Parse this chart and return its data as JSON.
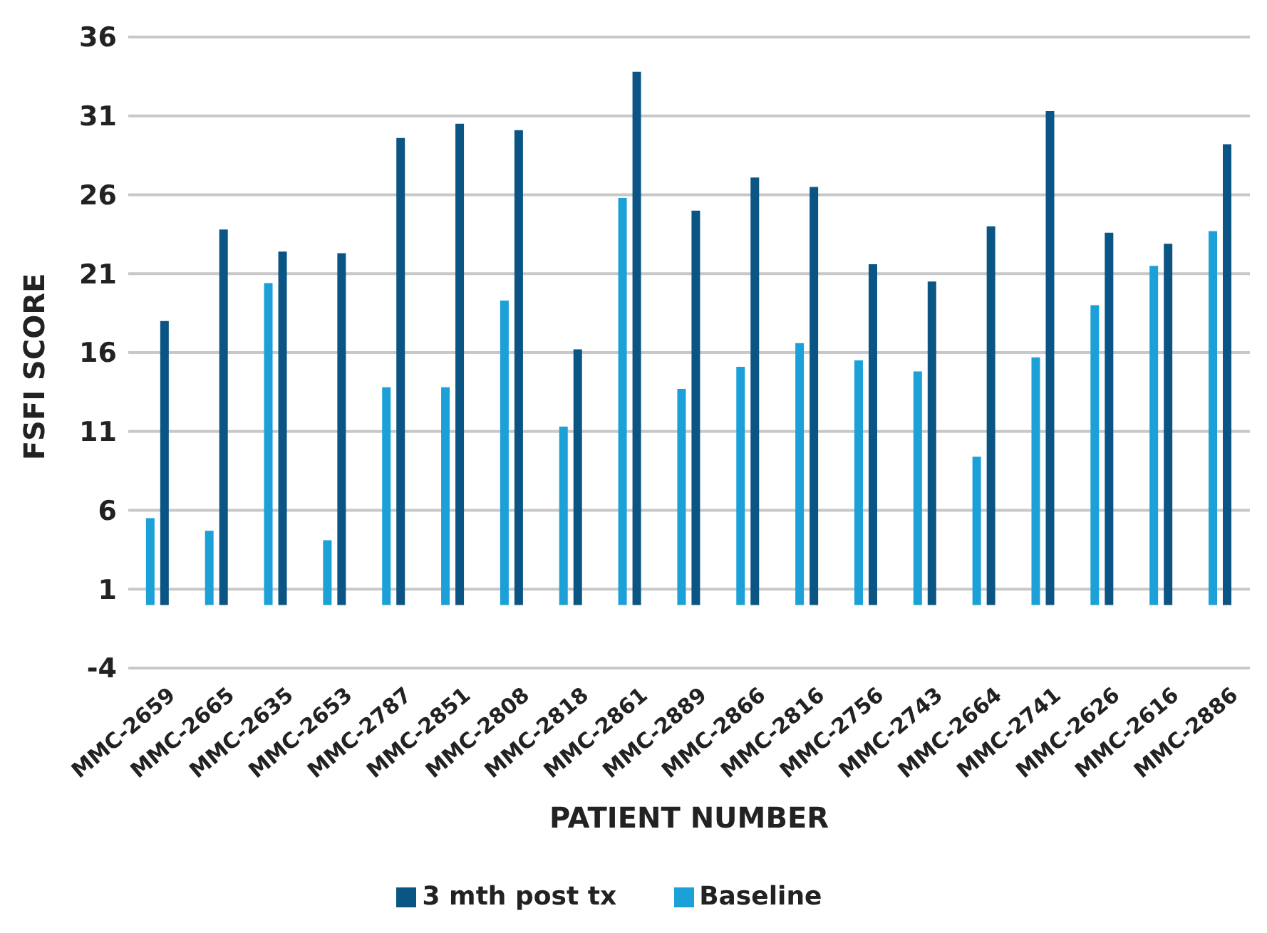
{
  "chart_data": {
    "type": "bar",
    "xlabel": "PATIENT NUMBER",
    "ylabel": "FSFI SCORE",
    "categories": [
      "MMC-2659",
      "MMC-2665",
      "MMC-2635",
      "MMC-2653",
      "MMC-2787",
      "MMC-2851",
      "MMC-2808",
      "MMC-2818",
      "MMC-2861",
      "MMC-2889",
      "MMC-2866",
      "MMC-2816",
      "MMC-2756",
      "MMC-2743",
      "MMC-2664",
      "MMC-2741",
      "MMC-2626",
      "MMC-2616",
      "MMC-2886"
    ],
    "series": [
      {
        "name": "Baseline",
        "color": "#1ba1d8",
        "values": [
          5.5,
          4.7,
          20.4,
          4.1,
          13.8,
          13.8,
          19.3,
          11.3,
          25.8,
          13.7,
          15.1,
          16.6,
          15.5,
          14.8,
          9.4,
          15.7,
          19.0,
          21.5,
          23.7
        ]
      },
      {
        "name": "3 mth post tx",
        "color": "#0b5585",
        "values": [
          18.0,
          23.8,
          22.4,
          22.3,
          29.6,
          30.5,
          30.1,
          16.2,
          33.8,
          25.0,
          27.1,
          26.5,
          21.6,
          20.5,
          24.0,
          31.3,
          23.6,
          22.9,
          29.2
        ]
      }
    ],
    "ylim": [
      -4,
      36
    ],
    "yticks": [
      -4,
      1,
      6,
      11,
      16,
      21,
      26,
      31,
      36
    ],
    "grid": "y",
    "legend": "bottom"
  }
}
